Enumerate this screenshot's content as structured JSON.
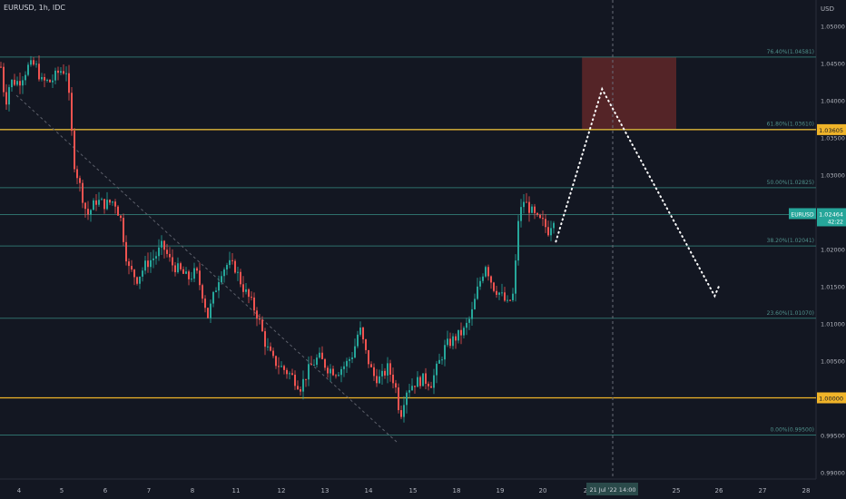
{
  "header": {
    "title": "EURUSD, 1h, IDC"
  },
  "axis": {
    "currency": "USD"
  },
  "colors": {
    "background": "#131722",
    "up": "#26a69a",
    "down": "#ef5350",
    "fib_line": "#2e6f6b",
    "fib_label": "#4f8f8a",
    "key_level": "#f0b429",
    "zone": "#6b2a2a",
    "price_tag": "#26a69a",
    "projection": "#ffffff",
    "axis_text": "#b2b5be"
  },
  "chart_data": {
    "type": "candlestick",
    "symbol": "EURUSD",
    "timeframe": "1h",
    "ylim": [
      0.99,
      1.0525
    ],
    "y_ticks": [
      "1.05000",
      "1.04500",
      "1.04000",
      "1.03500",
      "1.03000",
      "1.02500",
      "1.02000",
      "1.01500",
      "1.01000",
      "1.00500",
      "1.00000",
      "0.99500",
      "0.99000"
    ],
    "x_ticks": [
      "4",
      "5",
      "6",
      "7",
      "8",
      "11",
      "12",
      "13",
      "14",
      "15",
      "18",
      "19",
      "20",
      "2",
      "25",
      "26",
      "27",
      "28"
    ],
    "crosshair_time": "21 Jul '22 14:00",
    "price_label": {
      "symbol": "EURUSD",
      "value": "1.02464",
      "countdown": "42:22"
    },
    "key_levels": [
      {
        "value": 1.03605,
        "label": "1.03605"
      },
      {
        "value": 1.0,
        "label": "1.00000"
      }
    ],
    "fib_levels": [
      {
        "ratio": "76.40%",
        "value": 1.04581,
        "label": "76.40%(1.04581)"
      },
      {
        "ratio": "61.80%",
        "value": 1.0361,
        "label": "61.80%(1.03610)"
      },
      {
        "ratio": "50.00%",
        "value": 1.02825,
        "label": "50.00%(1.02825)"
      },
      {
        "ratio": "38.20%",
        "value": 1.02041,
        "label": "38.20%(1.02041)"
      },
      {
        "ratio": "23.60%",
        "value": 1.0107,
        "label": "23.60%(1.01070)"
      },
      {
        "ratio": "0.00%",
        "value": 0.995,
        "label": "0.00%(0.99500)"
      }
    ],
    "current_price_line": 1.02464,
    "zone": {
      "from_day": "20.9",
      "to_day": "25",
      "low": 1.0361,
      "high": 1.04581
    },
    "anchor_points": [
      {
        "t": 0,
        "p": 1.0445
      },
      {
        "t": 5,
        "p": 1.0395
      },
      {
        "t": 10,
        "p": 1.0425
      },
      {
        "t": 20,
        "p": 1.0425
      },
      {
        "t": 30,
        "p": 1.0445
      },
      {
        "t": 38,
        "p": 1.0448
      },
      {
        "t": 45,
        "p": 1.0425
      },
      {
        "t": 55,
        "p": 1.0425
      },
      {
        "t": 65,
        "p": 1.044
      },
      {
        "t": 72,
        "p": 1.044
      },
      {
        "t": 76,
        "p": 1.039
      },
      {
        "t": 80,
        "p": 1.032
      },
      {
        "t": 86,
        "p": 1.029
      },
      {
        "t": 95,
        "p": 1.0245
      },
      {
        "t": 105,
        "p": 1.0265
      },
      {
        "t": 115,
        "p": 1.026
      },
      {
        "t": 125,
        "p": 1.0265
      },
      {
        "t": 132,
        "p": 1.024
      },
      {
        "t": 140,
        "p": 1.0175
      },
      {
        "t": 150,
        "p": 1.016
      },
      {
        "t": 160,
        "p": 1.018
      },
      {
        "t": 170,
        "p": 1.019
      },
      {
        "t": 178,
        "p": 1.0205
      },
      {
        "t": 188,
        "p": 1.018
      },
      {
        "t": 198,
        "p": 1.017
      },
      {
        "t": 206,
        "p": 1.016
      },
      {
        "t": 215,
        "p": 1.017
      },
      {
        "t": 222,
        "p": 1.014
      },
      {
        "t": 228,
        "p": 1.011
      },
      {
        "t": 235,
        "p": 1.014
      },
      {
        "t": 242,
        "p": 1.017
      },
      {
        "t": 250,
        "p": 1.018
      },
      {
        "t": 258,
        "p": 1.0175
      },
      {
        "t": 266,
        "p": 1.015
      },
      {
        "t": 275,
        "p": 1.013
      },
      {
        "t": 283,
        "p": 1.011
      },
      {
        "t": 292,
        "p": 1.007
      },
      {
        "t": 300,
        "p": 1.005
      },
      {
        "t": 310,
        "p": 1.004
      },
      {
        "t": 320,
        "p": 1.003
      },
      {
        "t": 330,
        "p": 1.0015
      },
      {
        "t": 340,
        "p": 1.004
      },
      {
        "t": 350,
        "p": 1.0055
      },
      {
        "t": 360,
        "p": 1.004
      },
      {
        "t": 370,
        "p": 1.0035
      },
      {
        "t": 380,
        "p": 1.0045
      },
      {
        "t": 388,
        "p": 1.006
      },
      {
        "t": 395,
        "p": 1.0095
      },
      {
        "t": 402,
        "p": 1.006
      },
      {
        "t": 410,
        "p": 1.003
      },
      {
        "t": 418,
        "p": 1.0025
      },
      {
        "t": 426,
        "p": 1.004
      },
      {
        "t": 434,
        "p": 1.002
      },
      {
        "t": 440,
        "p": 0.9975
      },
      {
        "t": 446,
        "p": 1.001
      },
      {
        "t": 455,
        "p": 1.002
      },
      {
        "t": 465,
        "p": 1.0025
      },
      {
        "t": 474,
        "p": 1.002
      },
      {
        "t": 482,
        "p": 1.0045
      },
      {
        "t": 490,
        "p": 1.007
      },
      {
        "t": 500,
        "p": 1.008
      },
      {
        "t": 510,
        "p": 1.009
      },
      {
        "t": 518,
        "p": 1.011
      },
      {
        "t": 526,
        "p": 1.015
      },
      {
        "t": 534,
        "p": 1.018
      },
      {
        "t": 542,
        "p": 1.015
      },
      {
        "t": 550,
        "p": 1.014
      },
      {
        "t": 558,
        "p": 1.0125
      },
      {
        "t": 565,
        "p": 1.014
      },
      {
        "t": 570,
        "p": 1.024
      },
      {
        "t": 576,
        "p": 1.0265
      },
      {
        "t": 582,
        "p": 1.0255
      },
      {
        "t": 590,
        "p": 1.024
      },
      {
        "t": 597,
        "p": 1.0235
      },
      {
        "t": 603,
        "p": 1.0225
      },
      {
        "t": 610,
        "p": 1.0246
      }
    ],
    "projection": [
      {
        "day": "20.3",
        "price": 1.021
      },
      {
        "day": "21.7",
        "price": 1.0415
      },
      {
        "day": "25.9",
        "price": 1.0137
      },
      {
        "day": "26",
        "price": 1.015
      }
    ]
  }
}
